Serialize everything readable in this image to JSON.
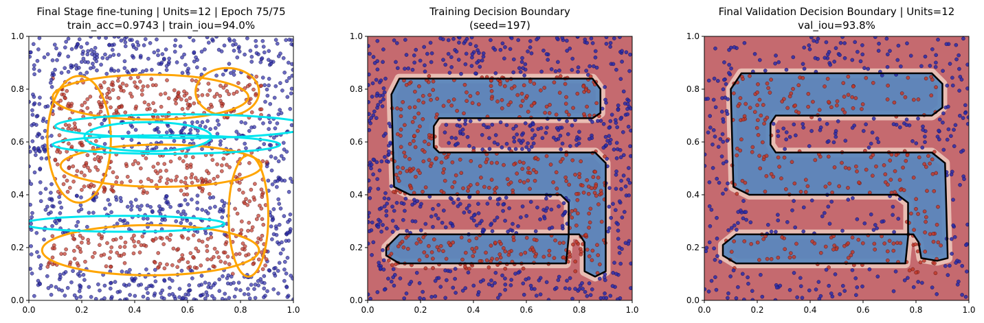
{
  "chart_data": [
    {
      "type": "scatter",
      "title_line1": "Final Stage fine-tuning | Units=12 | Epoch 75/75",
      "title_line2": "train_acc=0.9743 | train_iou=94.0%",
      "xlim": [
        0,
        1
      ],
      "ylim": [
        0,
        1
      ],
      "xticks": [
        "0.0",
        "0.2",
        "0.4",
        "0.6",
        "0.8",
        "1.0"
      ],
      "yticks": [
        "0.0",
        "0.2",
        "0.4",
        "0.6",
        "0.8",
        "1.0"
      ],
      "grid": false,
      "series": [
        {
          "values_desc": "class 1 points inside S-shaped region",
          "color": "#c0392b"
        },
        {
          "values_desc": "class 0 points outside S-shaped region",
          "color": "#2c2ca8"
        }
      ],
      "ellipses_color_positive": "#ffa500",
      "ellipses_color_negative": "#00e5ee",
      "ellipses": [
        {
          "cx": 0.46,
          "cy": 0.77,
          "rx": 0.37,
          "ry": 0.085,
          "angle": 0,
          "sign": "positive"
        },
        {
          "cx": 0.19,
          "cy": 0.61,
          "rx": 0.12,
          "ry": 0.24,
          "angle": 0,
          "sign": "positive"
        },
        {
          "cx": 0.75,
          "cy": 0.79,
          "rx": 0.12,
          "ry": 0.09,
          "angle": 0,
          "sign": "positive"
        },
        {
          "cx": 0.5,
          "cy": 0.51,
          "rx": 0.38,
          "ry": 0.08,
          "angle": 0,
          "sign": "positive"
        },
        {
          "cx": 0.83,
          "cy": 0.32,
          "rx": 0.075,
          "ry": 0.23,
          "angle": 0,
          "sign": "positive"
        },
        {
          "cx": 0.46,
          "cy": 0.19,
          "rx": 0.41,
          "ry": 0.095,
          "angle": 0,
          "sign": "positive"
        },
        {
          "cx": 0.58,
          "cy": 0.66,
          "rx": 0.48,
          "ry": 0.045,
          "angle": 0,
          "sign": "negative"
        },
        {
          "cx": 0.52,
          "cy": 0.59,
          "rx": 0.43,
          "ry": 0.035,
          "angle": 0,
          "sign": "negative"
        },
        {
          "cx": 0.45,
          "cy": 0.62,
          "rx": 0.24,
          "ry": 0.055,
          "angle": 0,
          "sign": "negative"
        },
        {
          "cx": 0.36,
          "cy": 0.29,
          "rx": 0.38,
          "ry": 0.03,
          "angle": 0,
          "sign": "negative"
        }
      ]
    },
    {
      "type": "heatmap",
      "title_line1": "Training Decision Boundary",
      "title_line2": "(seed=197)",
      "xlim": [
        0,
        1
      ],
      "ylim": [
        0,
        1
      ],
      "xticks": [
        "0.0",
        "0.2",
        "0.4",
        "0.6",
        "0.8",
        "1.0"
      ],
      "yticks": [
        "0.0",
        "0.2",
        "0.4",
        "0.6",
        "0.8",
        "1.0"
      ],
      "background_color": "#c56a6f",
      "region_color": "#5b87bd",
      "boundary_color": "#000000",
      "boundary": [
        [
          0.12,
          0.84
        ],
        [
          0.85,
          0.84
        ],
        [
          0.88,
          0.8
        ],
        [
          0.88,
          0.71
        ],
        [
          0.85,
          0.69
        ],
        [
          0.27,
          0.69
        ],
        [
          0.25,
          0.66
        ],
        [
          0.25,
          0.58
        ],
        [
          0.27,
          0.56
        ],
        [
          0.86,
          0.56
        ],
        [
          0.9,
          0.52
        ],
        [
          0.9,
          0.11
        ],
        [
          0.86,
          0.09
        ],
        [
          0.82,
          0.11
        ],
        [
          0.82,
          0.22
        ],
        [
          0.8,
          0.25
        ],
        [
          0.12,
          0.25
        ],
        [
          0.07,
          0.2
        ],
        [
          0.07,
          0.17
        ],
        [
          0.12,
          0.14
        ],
        [
          0.75,
          0.14
        ],
        [
          0.76,
          0.24
        ],
        [
          0.76,
          0.37
        ],
        [
          0.73,
          0.4
        ],
        [
          0.16,
          0.4
        ],
        [
          0.1,
          0.43
        ],
        [
          0.09,
          0.78
        ],
        [
          0.12,
          0.84
        ]
      ]
    },
    {
      "type": "heatmap",
      "title_line1": "Final Validation Decision Boundary | Units=12",
      "title_line2": "val_iou=93.8%",
      "xlim": [
        0,
        1
      ],
      "ylim": [
        0,
        1
      ],
      "xticks": [
        "0.0",
        "0.2",
        "0.4",
        "0.6",
        "0.8",
        "1.0"
      ],
      "yticks": [
        "0.0",
        "0.2",
        "0.4",
        "0.6",
        "0.8",
        "1.0"
      ],
      "background_color": "#c56a6f",
      "region_color": "#5b87bd",
      "boundary_color": "#000000",
      "boundary": [
        [
          0.14,
          0.86
        ],
        [
          0.86,
          0.86
        ],
        [
          0.9,
          0.82
        ],
        [
          0.9,
          0.73
        ],
        [
          0.86,
          0.7
        ],
        [
          0.27,
          0.7
        ],
        [
          0.25,
          0.67
        ],
        [
          0.25,
          0.59
        ],
        [
          0.27,
          0.56
        ],
        [
          0.86,
          0.56
        ],
        [
          0.91,
          0.52
        ],
        [
          0.92,
          0.16
        ],
        [
          0.88,
          0.15
        ],
        [
          0.82,
          0.16
        ],
        [
          0.81,
          0.22
        ],
        [
          0.79,
          0.25
        ],
        [
          0.12,
          0.25
        ],
        [
          0.07,
          0.21
        ],
        [
          0.07,
          0.17
        ],
        [
          0.12,
          0.14
        ],
        [
          0.76,
          0.14
        ],
        [
          0.77,
          0.24
        ],
        [
          0.77,
          0.37
        ],
        [
          0.73,
          0.4
        ],
        [
          0.17,
          0.4
        ],
        [
          0.11,
          0.43
        ],
        [
          0.1,
          0.8
        ],
        [
          0.14,
          0.86
        ]
      ]
    }
  ]
}
